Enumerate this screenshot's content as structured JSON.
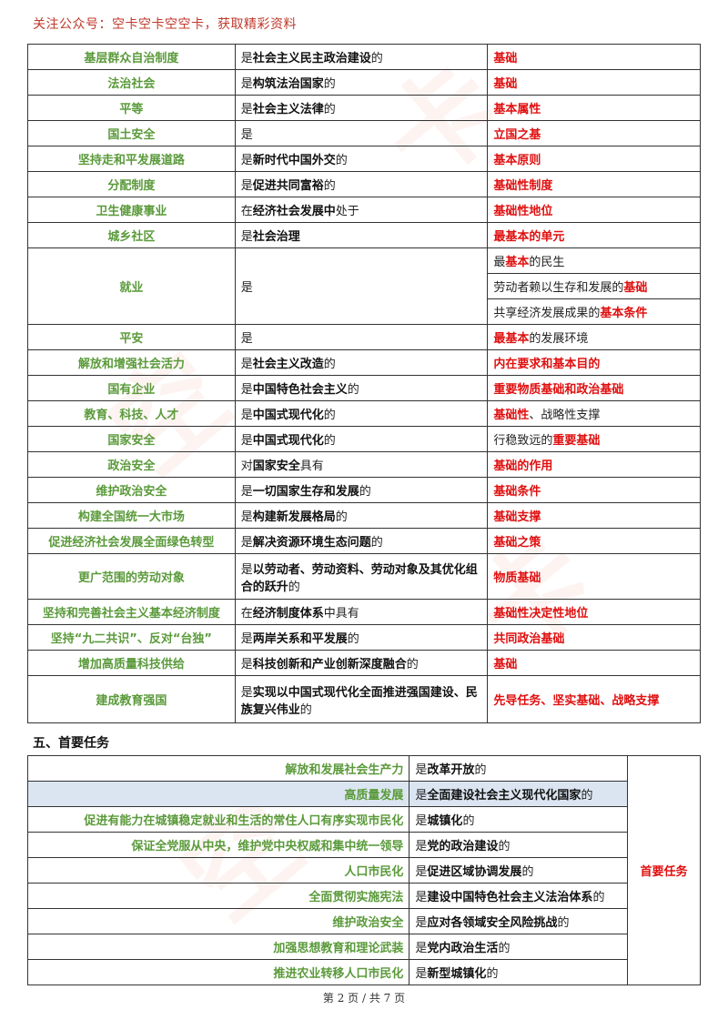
{
  "header_note": "关注公众号：空卡空卡空空卡，获取精彩资料",
  "table1": [
    {
      "key": "基层群众自治制度",
      "v": [
        "是",
        "社会主义民主政治建设",
        "的"
      ],
      "r": [
        {
          "t": "基础",
          "red": true
        }
      ]
    },
    {
      "key": "法治社会",
      "v": [
        "是",
        "构筑法治国家",
        "的"
      ],
      "r": [
        {
          "t": "基础",
          "red": true
        }
      ]
    },
    {
      "key": "平等",
      "v": [
        "是",
        "社会主义法律",
        "的"
      ],
      "r": [
        {
          "t": "基本属性",
          "red": true
        }
      ]
    },
    {
      "key": "国土安全",
      "v": [
        "是",
        "",
        ""
      ],
      "r": [
        {
          "t": "立国之基",
          "red": true
        }
      ]
    },
    {
      "key": "坚持走和平发展道路",
      "v": [
        "是",
        "新时代中国外交",
        "的"
      ],
      "r": [
        {
          "t": "基本原则",
          "red": true
        }
      ]
    },
    {
      "key": "分配制度",
      "v": [
        "是",
        "促进共同富裕",
        "的"
      ],
      "r": [
        {
          "t": "基础性制度",
          "red": true
        }
      ]
    },
    {
      "key": "卫生健康事业",
      "v": [
        "在",
        "经济社会发展中",
        "处于"
      ],
      "r": [
        {
          "t": "基础性地位",
          "red": true
        }
      ]
    },
    {
      "key": "城乡社区",
      "v": [
        "是",
        "社会治理",
        ""
      ],
      "r": [
        {
          "t": "最基本的单元",
          "red": true
        }
      ]
    },
    {
      "key": "平安",
      "v": [
        "是",
        "",
        ""
      ],
      "r": [
        {
          "t": "最基本",
          "red": true
        },
        {
          "t": "的发展环境",
          "red": false
        }
      ]
    },
    {
      "key": "解放和增强社会活力",
      "v": [
        "是",
        "社会主义改造",
        "的"
      ],
      "r": [
        {
          "t": "内在要求和基本目的",
          "red": true
        }
      ]
    },
    {
      "key": "国有企业",
      "v": [
        "是",
        "中国特色社会主义",
        "的"
      ],
      "r": [
        {
          "t": "重要物质基础和政治基础",
          "red": true
        }
      ]
    },
    {
      "key": "教育、科技、人才",
      "v": [
        "是",
        "中国式现代化",
        "的"
      ],
      "r": [
        {
          "t": "基础性",
          "red": true
        },
        {
          "t": "、战略性支撑",
          "red": false
        }
      ]
    },
    {
      "key": "国家安全",
      "v": [
        "是",
        "中国式现代化",
        "的"
      ],
      "r": [
        {
          "t": "行稳致远的",
          "red": false
        },
        {
          "t": "重要基础",
          "red": true
        }
      ]
    },
    {
      "key": "政治安全",
      "v": [
        "对",
        "国家安全",
        "具有"
      ],
      "r": [
        {
          "t": "基础的作用",
          "red": true
        }
      ]
    },
    {
      "key": "维护政治安全",
      "v": [
        "是",
        "一切国家生存和发展",
        "的"
      ],
      "r": [
        {
          "t": "基础条件",
          "red": true
        }
      ]
    },
    {
      "key": "构建全国统一大市场",
      "v": [
        "是",
        "构建新发展格局",
        "的"
      ],
      "r": [
        {
          "t": "基础支撑",
          "red": true
        }
      ]
    },
    {
      "key": "促进经济社会发展全面绿色转型",
      "v": [
        "是",
        "解决资源环境生态问题",
        "的"
      ],
      "r": [
        {
          "t": "基础之策",
          "red": true
        }
      ]
    }
  ],
  "jiuye": {
    "key": "就业",
    "v": "是",
    "rows": [
      [
        {
          "t": "最",
          "red": false
        },
        {
          "t": "基本",
          "red": true
        },
        {
          "t": "的民生",
          "red": false
        }
      ],
      [
        {
          "t": "劳动者赖以生存和发展的",
          "red": false
        },
        {
          "t": "基础",
          "red": true
        }
      ],
      [
        {
          "t": "共享经济发展成果的",
          "red": false
        },
        {
          "t": "基本条件",
          "red": true
        }
      ]
    ]
  },
  "laodong": {
    "key": "更广范围的劳动对象",
    "v": [
      "是",
      "以劳动者、劳动资料、劳动对象及其优化组合的跃升",
      "的"
    ],
    "r": "物质基础"
  },
  "table1b": [
    {
      "key": "坚持和完善社会主义基本经济制度",
      "v": [
        "在",
        "经济制度体系",
        "中具有"
      ],
      "r": "基础性决定性地位"
    },
    {
      "key": "坚持“九二共识”、反对“台独”",
      "v": [
        "是",
        "两岸关系和平发展",
        "的"
      ],
      "r": "共同政治基础"
    },
    {
      "key": "增加高质量科技供给",
      "v": [
        "是",
        "科技创新和产业创新深度融合",
        "的"
      ],
      "r": "基础"
    }
  ],
  "jiaoyu": {
    "key": "建成教育强国",
    "v": [
      "是",
      "实现以中国式现代化全面推进强国建设、民族复兴伟业",
      "的"
    ],
    "r": "先导任务、坚实基础、战略支撑"
  },
  "section_title": "五、首要任务",
  "table2": [
    {
      "key": "解放和发展社会生产力",
      "v": [
        "是",
        "改革开放",
        "的"
      ],
      "hl": false
    },
    {
      "key": "高质量发展",
      "v": [
        "是",
        "全面建设社会主义现代化国家",
        "的"
      ],
      "hl": true
    },
    {
      "key": "促进有能力在城镇稳定就业和生活的常住人口有序实现市民化",
      "v": [
        "是",
        "城镇化",
        "的"
      ],
      "hl": false
    },
    {
      "key": "保证全党服从中央，维护党中央权威和集中统一领导",
      "v": [
        "是",
        "党的政治建设",
        "的"
      ],
      "hl": false
    },
    {
      "key": "人口市民化",
      "v": [
        "是",
        "促进区域协调发展",
        "的"
      ],
      "hl": false
    },
    {
      "key": "全面贯彻实施宪法",
      "v": [
        "是",
        "建设中国特色社会主义法治体系",
        "的"
      ],
      "hl": false
    },
    {
      "key": "维护政治安全",
      "v": [
        "是",
        "应对各领域安全风险挑战",
        "的"
      ],
      "hl": false
    },
    {
      "key": "加强思想教育和理论武装",
      "v": [
        "是",
        "党内政治生活",
        "的"
      ],
      "hl": false
    },
    {
      "key": "推进农业转移人口市民化",
      "v": [
        "是",
        "新型城镇化",
        "的"
      ],
      "hl": false
    }
  ],
  "table2_result": "首要任务",
  "footer": "第 2 页 / 共 7 页"
}
